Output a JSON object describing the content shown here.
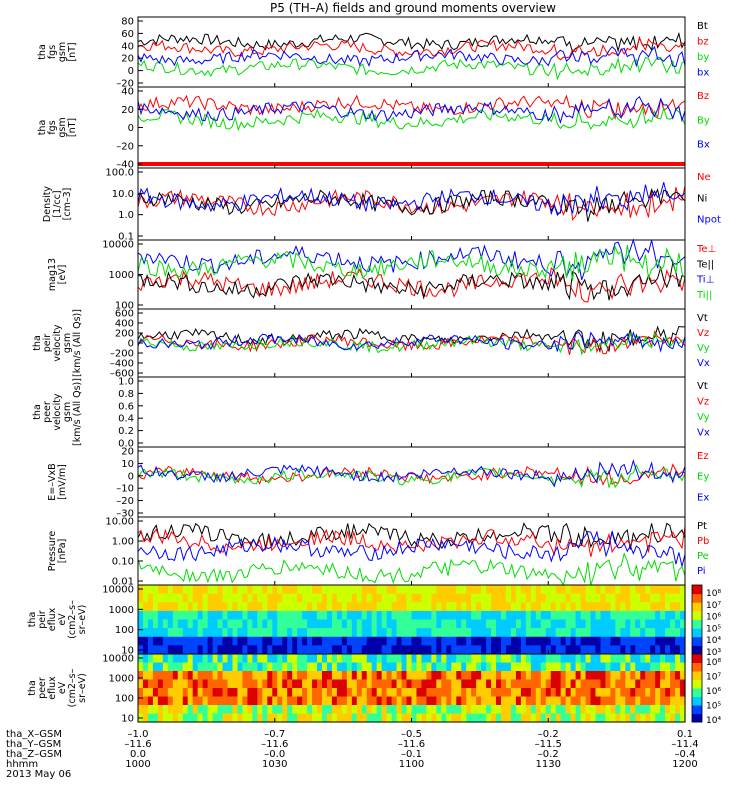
{
  "title": "P5 (TH–A) fields and ground moments overview",
  "date": "2013 May 06",
  "orbit": {
    "labels": [
      "tha_X–GSM",
      "tha_Y–GSM",
      "tha_Z–GSM",
      "hhmm"
    ],
    "rows": [
      [
        "–1.0",
        "–0.7",
        "–0.5",
        "–0.2",
        "0.1"
      ],
      [
        "–11.6",
        "–11.6",
        "–11.6",
        "–11.5",
        "–11.4"
      ],
      [
        "0.0",
        "–0.0",
        "–0.1",
        "–0.2",
        "–0.4"
      ],
      [
        "1000",
        "1030",
        "1100",
        "1130",
        "1200"
      ]
    ]
  },
  "colors": {
    "black": "#000000",
    "red": "#ff0000",
    "green": "#00dd00",
    "blue": "#0000ff"
  },
  "chart_data": [
    {
      "type": "line",
      "name": "fgs_gsm_magnitude",
      "ylabel": [
        "tha",
        "fgs",
        "gsm",
        "[nT]"
      ],
      "ylim": [
        -20,
        80
      ],
      "yticks": [
        "80",
        "60",
        "40",
        "20",
        "0",
        "–20"
      ],
      "series": [
        {
          "name": "Bt",
          "color": "black",
          "level": 45
        },
        {
          "name": "bz",
          "color": "red",
          "level": 35
        },
        {
          "name": "by",
          "color": "green",
          "level": 8
        },
        {
          "name": "bx",
          "color": "blue",
          "level": 22
        }
      ]
    },
    {
      "type": "line",
      "name": "fgs_gsm_components",
      "ylabel": [
        "tha",
        "fgs",
        "gsm",
        "[nT]"
      ],
      "ylim": [
        -55,
        40
      ],
      "yticks": [
        "40",
        "20",
        "0",
        "–20",
        "–40"
      ],
      "series": [
        {
          "name": "Bz",
          "color": "red",
          "level": 18
        },
        {
          "name": "By",
          "color": "green",
          "level": 2
        },
        {
          "name": "Bx",
          "color": "blue",
          "level": 12
        }
      ]
    },
    {
      "type": "line",
      "name": "density",
      "ylabel": [
        "Density",
        "[1/cc]",
        "[cm–3]"
      ],
      "scale": "log",
      "ylim": [
        0.1,
        120
      ],
      "yticks": [
        "100.0",
        "10.0",
        "1.0",
        "0.1"
      ],
      "series": [
        {
          "name": "Ne",
          "color": "red",
          "level": 4
        },
        {
          "name": "Ni",
          "color": "black",
          "level": 4
        },
        {
          "name": "Npot",
          "color": "blue",
          "level": 5
        }
      ]
    },
    {
      "type": "line",
      "name": "temperature",
      "ylabel": [
        "mag13",
        "[eV]"
      ],
      "scale": "log",
      "ylim": [
        20,
        10000
      ],
      "yticks": [
        "10000",
        "1000",
        "100"
      ],
      "series": [
        {
          "name": "Te⊥",
          "color": "red",
          "level": 200
        },
        {
          "name": "Te||",
          "color": "black",
          "level": 180
        },
        {
          "name": "Ti⊥",
          "color": "blue",
          "level": 1800
        },
        {
          "name": "Ti||",
          "color": "green",
          "level": 1100
        }
      ]
    },
    {
      "type": "line",
      "name": "peir_velocity",
      "ylabel": [
        "tha",
        "peir",
        "velocity",
        "gsm",
        "[km/s (All Qs)]"
      ],
      "ylim": [
        -600,
        600
      ],
      "yticks": [
        "600",
        "400",
        "200",
        "0",
        "–200",
        "–400",
        "–600"
      ],
      "series": [
        {
          "name": "Vt",
          "color": "black",
          "level": 100
        },
        {
          "name": "Vz",
          "color": "red",
          "level": 0
        },
        {
          "name": "Vy",
          "color": "green",
          "level": -20
        },
        {
          "name": "Vx",
          "color": "blue",
          "level": 20
        }
      ]
    },
    {
      "type": "line",
      "name": "peer_velocity",
      "ylabel": [
        "tha",
        "peer",
        "velocity",
        "gsm",
        "[km/s (All Qs)]"
      ],
      "ylim": [
        0,
        1
      ],
      "yticks": [
        "1.0",
        "0.8",
        "0.6",
        "0.4",
        "0.2",
        "0.0"
      ],
      "series": [
        {
          "name": "Vt",
          "color": "black",
          "level": null
        },
        {
          "name": "Vz",
          "color": "red",
          "level": null
        },
        {
          "name": "Vy",
          "color": "green",
          "level": null
        },
        {
          "name": "Vx",
          "color": "blue",
          "level": null
        }
      ]
    },
    {
      "type": "line",
      "name": "efield",
      "ylabel": [
        "E=–VxB",
        "[mV/m]"
      ],
      "ylim": [
        -30,
        20
      ],
      "yticks": [
        "20",
        "10",
        "0",
        "–10",
        "–20",
        "–30"
      ],
      "series": [
        {
          "name": "Ez",
          "color": "red",
          "level": 0
        },
        {
          "name": "Ey",
          "color": "green",
          "level": -1
        },
        {
          "name": "Ex",
          "color": "blue",
          "level": 1
        }
      ]
    },
    {
      "type": "line",
      "name": "pressure",
      "ylabel": [
        "Pressure",
        "[nPa]"
      ],
      "scale": "log",
      "ylim": [
        0.01,
        10
      ],
      "yticks": [
        "10.00",
        "1.00",
        "0.10",
        "0.01"
      ],
      "series": [
        {
          "name": "Pt",
          "color": "black",
          "level": 1.5
        },
        {
          "name": "Pb",
          "color": "red",
          "level": 0.8
        },
        {
          "name": "Pe",
          "color": "green",
          "level": 0.04
        },
        {
          "name": "Pi",
          "color": "blue",
          "level": 0.4
        }
      ]
    },
    {
      "type": "heatmap",
      "name": "peir_eflux",
      "ylabel": [
        "tha",
        "peir",
        "eflux",
        "eV",
        "(cm2–s–",
        "sr–eV)"
      ],
      "yticks": [
        "10000",
        "1000",
        "100",
        "10"
      ],
      "colorbar": {
        "ticks": [
          "10⁸",
          "10⁷",
          "10⁶",
          "10⁵",
          "10⁴",
          "10³"
        ]
      }
    },
    {
      "type": "heatmap",
      "name": "peer_eflux",
      "ylabel": [
        "tha",
        "peer",
        "eflux",
        "eV",
        "(cm2–s–",
        "sr–eV)"
      ],
      "yticks": [
        "10000",
        "1000",
        "100",
        "10"
      ],
      "colorbar": {
        "ticks": [
          "10⁸",
          "10⁷",
          "10⁶",
          "10⁵",
          "10⁴"
        ]
      }
    }
  ]
}
